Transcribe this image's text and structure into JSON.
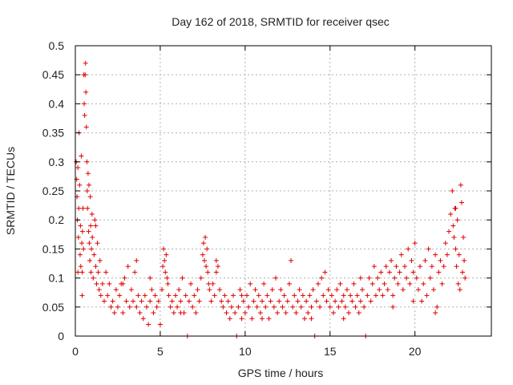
{
  "chart_data": {
    "type": "scatter",
    "title": "Day 162 of 2018, SRMTID for receiver qsec",
    "xlabel": "GPS time / hours",
    "ylabel": "SRMTID / TECUs",
    "xlim": [
      0,
      24.5
    ],
    "ylim": [
      0,
      0.5
    ],
    "xticks": [
      0,
      5,
      10,
      15,
      20
    ],
    "xtick_labels": [
      "0",
      "5",
      "10",
      "15",
      "20"
    ],
    "yticks": [
      0,
      0.05,
      0.1,
      0.15,
      0.2,
      0.25,
      0.3,
      0.35,
      0.4,
      0.45,
      0.5
    ],
    "ytick_labels": [
      "0",
      "0.05",
      "0.1",
      "0.15",
      "0.2",
      "0.25",
      "0.3",
      "0.35",
      "0.4",
      "0.45",
      "0.5"
    ],
    "grid": true,
    "marker": "+",
    "series": [
      {
        "name": "SRMTID",
        "color": "#e00000",
        "points": [
          [
            0.05,
            0.3
          ],
          [
            0.08,
            0.27
          ],
          [
            0.1,
            0.24
          ],
          [
            0.12,
            0.2
          ],
          [
            0.15,
            0.29
          ],
          [
            0.18,
            0.17
          ],
          [
            0.2,
            0.22
          ],
          [
            0.22,
            0.35
          ],
          [
            0.25,
            0.26
          ],
          [
            0.28,
            0.14
          ],
          [
            0.3,
            0.19
          ],
          [
            0.32,
            0.12
          ],
          [
            0.35,
            0.31
          ],
          [
            0.38,
            0.16
          ],
          [
            0.4,
            0.11
          ],
          [
            0.42,
            0.18
          ],
          [
            0.45,
            0.22
          ],
          [
            0.48,
            0.15
          ],
          [
            0.5,
            0.45
          ],
          [
            0.52,
            0.4
          ],
          [
            0.55,
            0.38
          ],
          [
            0.58,
            0.45
          ],
          [
            0.6,
            0.47
          ],
          [
            0.62,
            0.42
          ],
          [
            0.65,
            0.36
          ],
          [
            0.68,
            0.3
          ],
          [
            0.7,
            0.25
          ],
          [
            0.72,
            0.22
          ],
          [
            0.75,
            0.28
          ],
          [
            0.78,
            0.18
          ],
          [
            0.8,
            0.26
          ],
          [
            0.82,
            0.16
          ],
          [
            0.85,
            0.13
          ],
          [
            0.88,
            0.24
          ],
          [
            0.9,
            0.19
          ],
          [
            0.92,
            0.11
          ],
          [
            0.95,
            0.15
          ],
          [
            0.98,
            0.21
          ],
          [
            1.0,
            0.17
          ],
          [
            1.05,
            0.1
          ],
          [
            1.1,
            0.14
          ],
          [
            1.15,
            0.2
          ],
          [
            1.2,
            0.12
          ],
          [
            1.25,
            0.09
          ],
          [
            1.3,
            0.16
          ],
          [
            1.35,
            0.11
          ],
          [
            1.4,
            0.08
          ],
          [
            1.45,
            0.13
          ],
          [
            1.5,
            0.07
          ],
          [
            1.6,
            0.09
          ],
          [
            1.7,
            0.06
          ],
          [
            1.8,
            0.11
          ],
          [
            1.9,
            0.07
          ],
          [
            2.0,
            0.09
          ],
          [
            2.1,
            0.05
          ],
          [
            2.2,
            0.06
          ],
          [
            2.3,
            0.04
          ],
          [
            2.4,
            0.08
          ],
          [
            2.5,
            0.05
          ],
          [
            2.6,
            0.07
          ],
          [
            2.7,
            0.09
          ],
          [
            2.8,
            0.04
          ],
          [
            2.9,
            0.1
          ],
          [
            3.0,
            0.06
          ],
          [
            3.1,
            0.12
          ],
          [
            3.2,
            0.05
          ],
          [
            3.3,
            0.08
          ],
          [
            3.4,
            0.06
          ],
          [
            3.5,
            0.11
          ],
          [
            3.6,
            0.05
          ],
          [
            3.7,
            0.07
          ],
          [
            3.8,
            0.04
          ],
          [
            3.9,
            0.06
          ],
          [
            4.0,
            0.03
          ],
          [
            4.1,
            0.07
          ],
          [
            4.2,
            0.05
          ],
          [
            4.3,
            0.02
          ],
          [
            4.4,
            0.06
          ],
          [
            4.5,
            0.08
          ],
          [
            4.6,
            0.04
          ],
          [
            4.7,
            0.07
          ],
          [
            4.8,
            0.05
          ],
          [
            4.9,
            0.06
          ],
          [
            5.0,
            0.02
          ],
          [
            5.1,
            0.08
          ],
          [
            5.15,
            0.12
          ],
          [
            5.2,
            0.15
          ],
          [
            5.25,
            0.13
          ],
          [
            5.3,
            0.11
          ],
          [
            5.35,
            0.14
          ],
          [
            5.4,
            0.1
          ],
          [
            5.45,
            0.09
          ],
          [
            5.5,
            0.07
          ],
          [
            5.6,
            0.05
          ],
          [
            5.7,
            0.06
          ],
          [
            5.8,
            0.04
          ],
          [
            5.9,
            0.07
          ],
          [
            6.0,
            0.05
          ],
          [
            6.1,
            0.08
          ],
          [
            6.2,
            0.06
          ],
          [
            6.3,
            0.1
          ],
          [
            6.4,
            0.04
          ],
          [
            6.5,
            0.07
          ],
          [
            6.6,
            0.0
          ],
          [
            6.7,
            0.06
          ],
          [
            6.8,
            0.09
          ],
          [
            6.9,
            0.05
          ],
          [
            7.0,
            0.07
          ],
          [
            7.1,
            0.04
          ],
          [
            7.2,
            0.08
          ],
          [
            7.3,
            0.06
          ],
          [
            7.4,
            0.1
          ],
          [
            7.5,
            0.14
          ],
          [
            7.55,
            0.16
          ],
          [
            7.6,
            0.13
          ],
          [
            7.65,
            0.17
          ],
          [
            7.7,
            0.12
          ],
          [
            7.75,
            0.15
          ],
          [
            7.8,
            0.11
          ],
          [
            7.85,
            0.09
          ],
          [
            7.9,
            0.08
          ],
          [
            8.0,
            0.06
          ],
          [
            8.1,
            0.09
          ],
          [
            8.2,
            0.07
          ],
          [
            8.3,
            0.11
          ],
          [
            8.4,
            0.12
          ],
          [
            8.5,
            0.08
          ],
          [
            8.6,
            0.06
          ],
          [
            8.7,
            0.05
          ],
          [
            8.8,
            0.07
          ],
          [
            8.9,
            0.04
          ],
          [
            9.0,
            0.06
          ],
          [
            9.1,
            0.03
          ],
          [
            9.2,
            0.05
          ],
          [
            9.3,
            0.07
          ],
          [
            9.4,
            0.04
          ],
          [
            9.5,
            0.0
          ],
          [
            9.6,
            0.05
          ],
          [
            9.7,
            0.08
          ],
          [
            9.8,
            0.03
          ],
          [
            9.9,
            0.06
          ],
          [
            10.0,
            0.04
          ],
          [
            10.1,
            0.07
          ],
          [
            10.2,
            0.05
          ],
          [
            10.3,
            0.09
          ],
          [
            10.4,
            0.03
          ],
          [
            10.5,
            0.06
          ],
          [
            10.6,
            0.08
          ],
          [
            10.7,
            0.05
          ],
          [
            10.8,
            0.07
          ],
          [
            10.9,
            0.04
          ],
          [
            11.0,
            0.06
          ],
          [
            11.1,
            0.09
          ],
          [
            11.2,
            0.05
          ],
          [
            11.3,
            0.07
          ],
          [
            11.4,
            0.03
          ],
          [
            11.5,
            0.06
          ],
          [
            11.6,
            0.08
          ],
          [
            11.7,
            0.05
          ],
          [
            11.8,
            0.1
          ],
          [
            11.9,
            0.04
          ],
          [
            12.0,
            0.06
          ],
          [
            12.1,
            0.08
          ],
          [
            12.2,
            0.05
          ],
          [
            12.3,
            0.07
          ],
          [
            12.4,
            0.04
          ],
          [
            12.5,
            0.06
          ],
          [
            12.6,
            0.09
          ],
          [
            12.7,
            0.13
          ],
          [
            12.8,
            0.05
          ],
          [
            12.9,
            0.07
          ],
          [
            13.0,
            0.04
          ],
          [
            13.1,
            0.06
          ],
          [
            13.2,
            0.08
          ],
          [
            13.3,
            0.05
          ],
          [
            13.4,
            0.07
          ],
          [
            13.5,
            0.03
          ],
          [
            13.6,
            0.06
          ],
          [
            13.7,
            0.04
          ],
          [
            13.8,
            0.07
          ],
          [
            13.9,
            0.05
          ],
          [
            14.0,
            0.08
          ],
          [
            14.1,
            0.0
          ],
          [
            14.2,
            0.06
          ],
          [
            14.3,
            0.09
          ],
          [
            14.4,
            0.05
          ],
          [
            14.5,
            0.1
          ],
          [
            14.6,
            0.07
          ],
          [
            14.7,
            0.11
          ],
          [
            14.8,
            0.06
          ],
          [
            14.9,
            0.08
          ],
          [
            15.0,
            0.05
          ],
          [
            15.1,
            0.07
          ],
          [
            15.2,
            0.04
          ],
          [
            15.3,
            0.06
          ],
          [
            15.4,
            0.08
          ],
          [
            15.5,
            0.05
          ],
          [
            15.6,
            0.09
          ],
          [
            15.7,
            0.06
          ],
          [
            15.8,
            0.07
          ],
          [
            15.9,
            0.05
          ],
          [
            16.0,
            0.08
          ],
          [
            16.1,
            0.04
          ],
          [
            16.2,
            0.07
          ],
          [
            16.3,
            0.06
          ],
          [
            16.4,
            0.09
          ],
          [
            16.5,
            0.05
          ],
          [
            16.6,
            0.07
          ],
          [
            16.7,
            0.04
          ],
          [
            16.8,
            0.06
          ],
          [
            16.9,
            0.08
          ],
          [
            17.0,
            0.05
          ],
          [
            17.1,
            0.0
          ],
          [
            17.2,
            0.07
          ],
          [
            17.3,
            0.1
          ],
          [
            17.4,
            0.06
          ],
          [
            17.5,
            0.09
          ],
          [
            17.6,
            0.12
          ],
          [
            17.7,
            0.07
          ],
          [
            17.8,
            0.1
          ],
          [
            17.9,
            0.08
          ],
          [
            18.0,
            0.11
          ],
          [
            18.1,
            0.07
          ],
          [
            18.2,
            0.09
          ],
          [
            18.3,
            0.12
          ],
          [
            18.4,
            0.08
          ],
          [
            18.5,
            0.11
          ],
          [
            18.6,
            0.13
          ],
          [
            18.7,
            0.07
          ],
          [
            18.8,
            0.1
          ],
          [
            18.9,
            0.12
          ],
          [
            19.0,
            0.09
          ],
          [
            19.1,
            0.11
          ],
          [
            19.2,
            0.14
          ],
          [
            19.3,
            0.08
          ],
          [
            19.4,
            0.12
          ],
          [
            19.5,
            0.1
          ],
          [
            19.6,
            0.15
          ],
          [
            19.7,
            0.09
          ],
          [
            19.8,
            0.13
          ],
          [
            19.9,
            0.11
          ],
          [
            20.0,
            0.16
          ],
          [
            20.1,
            0.1
          ],
          [
            20.2,
            0.08
          ],
          [
            20.3,
            0.12
          ],
          [
            20.4,
            0.06
          ],
          [
            20.5,
            0.09
          ],
          [
            20.6,
            0.13
          ],
          [
            20.7,
            0.07
          ],
          [
            20.8,
            0.15
          ],
          [
            20.9,
            0.1
          ],
          [
            21.0,
            0.12
          ],
          [
            21.1,
            0.08
          ],
          [
            21.2,
            0.14
          ],
          [
            21.3,
            0.05
          ],
          [
            21.4,
            0.11
          ],
          [
            21.5,
            0.13
          ],
          [
            21.6,
            0.09
          ],
          [
            21.7,
            0.12
          ],
          [
            21.8,
            0.16
          ],
          [
            21.9,
            0.14
          ],
          [
            22.0,
            0.18
          ],
          [
            22.1,
            0.21
          ],
          [
            22.2,
            0.25
          ],
          [
            22.25,
            0.19
          ],
          [
            22.3,
            0.17
          ],
          [
            22.35,
            0.22
          ],
          [
            22.4,
            0.15
          ],
          [
            22.45,
            0.12
          ],
          [
            22.5,
            0.2
          ],
          [
            22.55,
            0.09
          ],
          [
            22.6,
            0.14
          ],
          [
            22.65,
            0.08
          ],
          [
            22.7,
            0.26
          ],
          [
            22.75,
            0.23
          ],
          [
            22.8,
            0.11
          ],
          [
            22.85,
            0.17
          ],
          [
            22.9,
            0.13
          ],
          [
            22.95,
            0.1
          ],
          [
            0.15,
            0.11
          ],
          [
            0.4,
            0.07
          ],
          [
            1.2,
            0.19
          ],
          [
            2.8,
            0.09
          ],
          [
            3.6,
            0.13
          ],
          [
            4.4,
            0.1
          ],
          [
            6.2,
            0.04
          ],
          [
            8.3,
            0.13
          ],
          [
            9.8,
            0.07
          ],
          [
            11.0,
            0.03
          ],
          [
            13.9,
            0.03
          ],
          [
            15.8,
            0.03
          ],
          [
            16.8,
            0.1
          ],
          [
            18.7,
            0.05
          ],
          [
            19.9,
            0.06
          ],
          [
            21.2,
            0.04
          ],
          [
            22.4,
            0.22
          ]
        ]
      }
    ]
  }
}
